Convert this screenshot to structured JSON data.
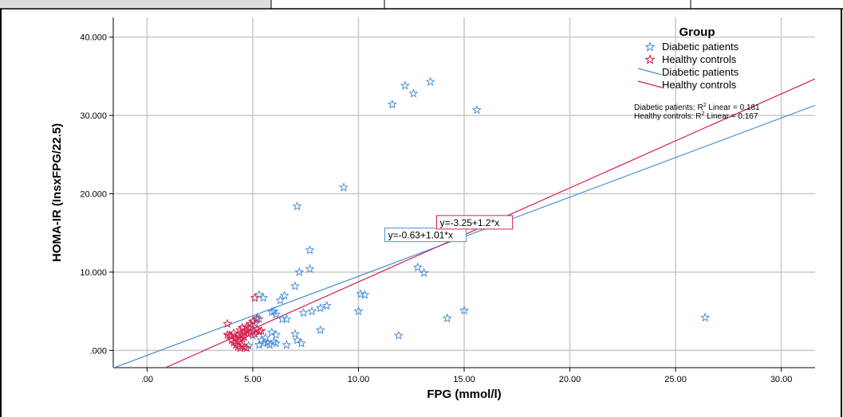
{
  "chart_data": {
    "type": "scatter",
    "title": "",
    "xlabel": "FPG (mmol/l)",
    "ylabel": "HOMA-IR (InsxFPG/22.5)",
    "xlim": [
      -1.6,
      31.6
    ],
    "ylim": [
      -2.2,
      42.5
    ],
    "x_ticks": [
      0,
      5,
      10,
      15,
      20,
      25,
      30
    ],
    "x_tick_labels": [
      ".00",
      "5.00",
      "10.00",
      "15.00",
      "20.00",
      "25.00",
      "30.00"
    ],
    "y_ticks": [
      0,
      10,
      20,
      30,
      40
    ],
    "y_tick_labels": [
      ".000",
      "10.000",
      "20.000",
      "30.000",
      "40.000"
    ],
    "grid": "vertical and horizontal",
    "legend": {
      "title": "Group",
      "position": "top-right",
      "entries": [
        {
          "label": "Diabetic patients",
          "kind": "marker",
          "color": "#4a90d9"
        },
        {
          "label": "Healthy controls",
          "kind": "marker",
          "color": "#d6204e"
        },
        {
          "label": "Diabetic patients",
          "kind": "line",
          "color": "#4a90d9"
        },
        {
          "label": "Healthy controls",
          "kind": "line",
          "color": "#d6204e"
        }
      ],
      "r2_notes": [
        {
          "prefix": "Diabetic patients: R",
          "sup": "2",
          "suffix": " Linear = 0.181"
        },
        {
          "prefix": "Healthy controls: R",
          "sup": "2",
          "suffix": " Linear = 0.167"
        }
      ]
    },
    "series": [
      {
        "name": "Diabetic patients",
        "color": "#4a90d9",
        "fit": {
          "intercept": -0.63,
          "slope": 1.01,
          "label": "y=-0.63+1.01*x"
        },
        "points": [
          [
            13.4,
            34.3
          ],
          [
            12.2,
            33.8
          ],
          [
            12.6,
            32.8
          ],
          [
            11.6,
            31.4
          ],
          [
            15.6,
            30.7
          ],
          [
            26.4,
            4.2
          ],
          [
            9.3,
            20.8
          ],
          [
            7.1,
            18.4
          ],
          [
            7.7,
            12.8
          ],
          [
            7.7,
            10.4
          ],
          [
            7.2,
            10.0
          ],
          [
            7.0,
            8.2
          ],
          [
            12.8,
            10.6
          ],
          [
            13.1,
            9.9
          ],
          [
            10.1,
            7.2
          ],
          [
            10.3,
            7.1
          ],
          [
            10.0,
            5.0
          ],
          [
            15.0,
            5.1
          ],
          [
            14.2,
            4.1
          ],
          [
            11.9,
            1.9
          ],
          [
            6.5,
            7.0
          ],
          [
            6.3,
            6.4
          ],
          [
            5.3,
            7.1
          ],
          [
            5.5,
            6.7
          ],
          [
            8.5,
            5.7
          ],
          [
            8.2,
            5.4
          ],
          [
            7.8,
            5.0
          ],
          [
            7.4,
            4.8
          ],
          [
            6.1,
            4.6
          ],
          [
            6.0,
            5.0
          ],
          [
            5.9,
            4.9
          ],
          [
            6.4,
            4.0
          ],
          [
            6.6,
            4.0
          ],
          [
            8.2,
            2.6
          ],
          [
            7.0,
            2.1
          ],
          [
            5.9,
            2.3
          ],
          [
            6.1,
            2.0
          ],
          [
            5.6,
            1.6
          ],
          [
            5.4,
            1.3
          ],
          [
            5.7,
            1.0
          ],
          [
            5.2,
            4.2
          ],
          [
            5.3,
            4.0
          ],
          [
            5.1,
            3.4
          ],
          [
            4.9,
            2.8
          ],
          [
            6.0,
            1.1
          ],
          [
            6.1,
            0.9
          ],
          [
            5.8,
            0.7
          ],
          [
            7.1,
            1.3
          ],
          [
            7.3,
            0.9
          ],
          [
            6.6,
            0.7
          ],
          [
            5.3,
            0.7
          ],
          [
            4.8,
            0.6
          ],
          [
            5.5,
            0.9
          ],
          [
            5.0,
            1.9
          ]
        ]
      },
      {
        "name": "Healthy controls",
        "color": "#d6204e",
        "fit": {
          "intercept": -3.25,
          "slope": 1.2,
          "label": "y=-3.25+1.2*x"
        },
        "points": [
          [
            5.1,
            6.7
          ],
          [
            3.8,
            3.4
          ],
          [
            3.8,
            2.0
          ],
          [
            3.9,
            1.9
          ],
          [
            4.0,
            1.8
          ],
          [
            4.1,
            2.2
          ],
          [
            4.2,
            1.6
          ],
          [
            4.3,
            2.0
          ],
          [
            4.3,
            1.2
          ],
          [
            4.4,
            2.6
          ],
          [
            4.4,
            1.4
          ],
          [
            4.5,
            2.9
          ],
          [
            4.5,
            2.0
          ],
          [
            4.6,
            2.3
          ],
          [
            4.6,
            1.7
          ],
          [
            4.7,
            3.0
          ],
          [
            4.7,
            2.5
          ],
          [
            4.8,
            2.1
          ],
          [
            4.8,
            2.9
          ],
          [
            4.9,
            2.3
          ],
          [
            5.0,
            2.5
          ],
          [
            5.1,
            2.1
          ],
          [
            5.2,
            2.7
          ],
          [
            5.3,
            2.4
          ],
          [
            5.4,
            2.5
          ],
          [
            5.0,
            3.7
          ],
          [
            4.1,
            1.0
          ],
          [
            4.2,
            0.7
          ],
          [
            4.3,
            0.5
          ],
          [
            4.4,
            0.3
          ],
          [
            4.5,
            0.6
          ],
          [
            4.6,
            0.4
          ],
          [
            4.7,
            0.3
          ],
          [
            4.5,
            1.5
          ],
          [
            4.0,
            1.3
          ],
          [
            5.2,
            4.0
          ],
          [
            4.9,
            3.4
          ]
        ]
      }
    ]
  }
}
